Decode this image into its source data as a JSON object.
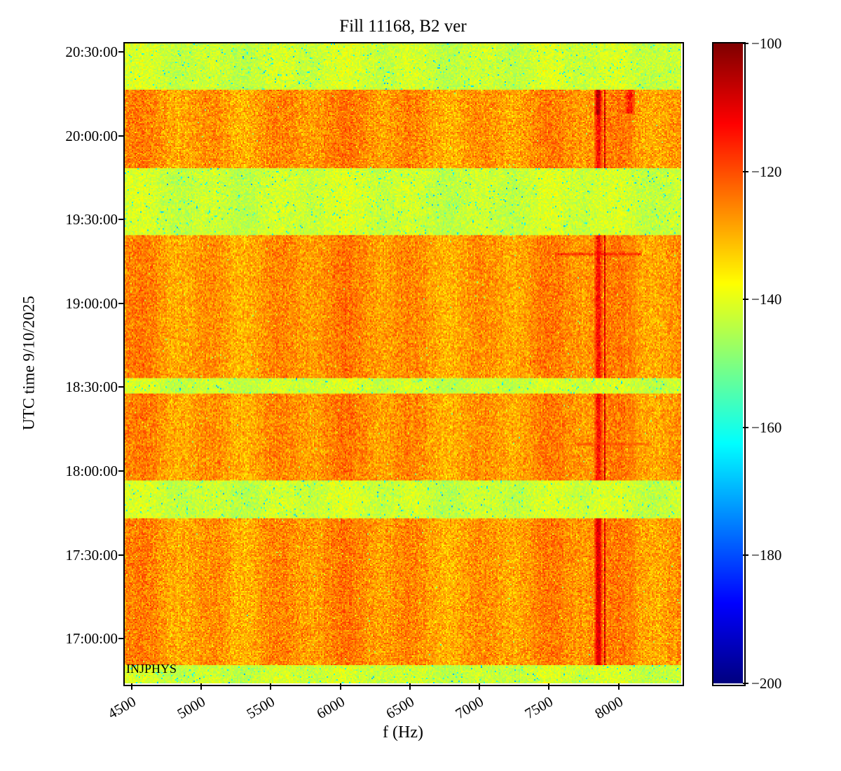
{
  "figure": {
    "title": "Fill 11168, B2 ver",
    "xlabel": "f (Hz)",
    "ylabel": "UTC time 9/10/2025",
    "annotation": "INJPHYS"
  },
  "chart_data": {
    "type": "heatmap",
    "title": "Fill 11168, B2 ver",
    "xlabel": "f (Hz)",
    "ylabel": "UTC time 9/10/2025",
    "annotation": "INJPHYS",
    "colormap": "jet",
    "x_range_hz": [
      4450,
      8450
    ],
    "x_tick_values": [
      4500,
      5000,
      5500,
      6000,
      6500,
      7000,
      7500,
      8000
    ],
    "y_tick_labels": [
      "20:30:00",
      "20:00:00",
      "19:30:00",
      "19:00:00",
      "18:30:00",
      "18:00:00",
      "17:30:00",
      "17:00:00"
    ],
    "y_range_hours": [
      16.733,
      20.55
    ],
    "colorbar": {
      "min": -200,
      "max": -100,
      "tick_values": [
        -100,
        -120,
        -140,
        -160,
        -180,
        -200
      ],
      "tick_labels": [
        "−100",
        "−120",
        "−140",
        "−160",
        "−180",
        "−200"
      ]
    },
    "noise": {
      "active_mean": -127,
      "active_spread": 8,
      "quiet_mean": -142.5,
      "quiet_spread": 5.5
    },
    "time_bands": [
      {
        "t0": 20.274,
        "t1": 20.55,
        "kind": "quiet"
      },
      {
        "t0": 19.806,
        "t1": 20.274,
        "kind": "active"
      },
      {
        "t0": 19.402,
        "t1": 19.806,
        "kind": "quiet"
      },
      {
        "t0": 18.55,
        "t1": 19.402,
        "kind": "active"
      },
      {
        "t0": 18.46,
        "t1": 18.55,
        "kind": "quiet"
      },
      {
        "t0": 17.946,
        "t1": 18.46,
        "kind": "active"
      },
      {
        "t0": 17.716,
        "t1": 17.946,
        "kind": "quiet"
      },
      {
        "t0": 16.838,
        "t1": 17.716,
        "kind": "active"
      },
      {
        "t0": 16.733,
        "t1": 16.838,
        "kind": "quiet"
      }
    ],
    "features": [
      {
        "name": "main-spectral-line",
        "axis": "f",
        "f0": 7825,
        "f1": 7885,
        "t0": 16.78,
        "t1": 20.28,
        "value": -111,
        "strength": 1.0,
        "active_only": true
      },
      {
        "name": "main-line-top-burst",
        "axis": "f",
        "f0": 7830,
        "f1": 7875,
        "t0": 20.12,
        "t1": 20.275,
        "value": -104,
        "strength": 1.0,
        "active_only": true
      },
      {
        "name": "main-line-lower",
        "axis": "f",
        "f0": 7830,
        "f1": 7880,
        "t0": 16.84,
        "t1": 17.72,
        "value": -108,
        "strength": 0.9,
        "active_only": true
      },
      {
        "name": "thin-dark-line",
        "axis": "f",
        "f0": 7896,
        "f1": 7909,
        "t0": 16.78,
        "t1": 20.28,
        "value": -106,
        "strength": 1.0,
        "active_only": true
      },
      {
        "name": "upper-side-line",
        "axis": "f",
        "f0": 8040,
        "f1": 8120,
        "t0": 20.13,
        "t1": 20.275,
        "value": -112,
        "strength": 1.0,
        "active_only": true
      },
      {
        "name": "upper-side-tail",
        "axis": "f",
        "f0": 8050,
        "f1": 8105,
        "t0": 19.85,
        "t1": 20.13,
        "value": -122,
        "strength": 0.5,
        "active_only": true
      },
      {
        "name": "burst-19-17",
        "axis": "t",
        "f0": 7540,
        "f1": 8170,
        "t0": 19.283,
        "t1": 19.302,
        "value": -113,
        "strength": 0.9,
        "active_only": true
      },
      {
        "name": "burst-18-10",
        "axis": "t",
        "f0": 7680,
        "f1": 8240,
        "t0": 18.152,
        "t1": 18.17,
        "value": -118,
        "strength": 0.8,
        "active_only": true
      },
      {
        "name": "lower-side-line",
        "axis": "f",
        "f0": 8060,
        "f1": 8130,
        "t0": 16.84,
        "t1": 19.4,
        "value": -122,
        "strength": 0.38,
        "active_only": true
      }
    ]
  }
}
